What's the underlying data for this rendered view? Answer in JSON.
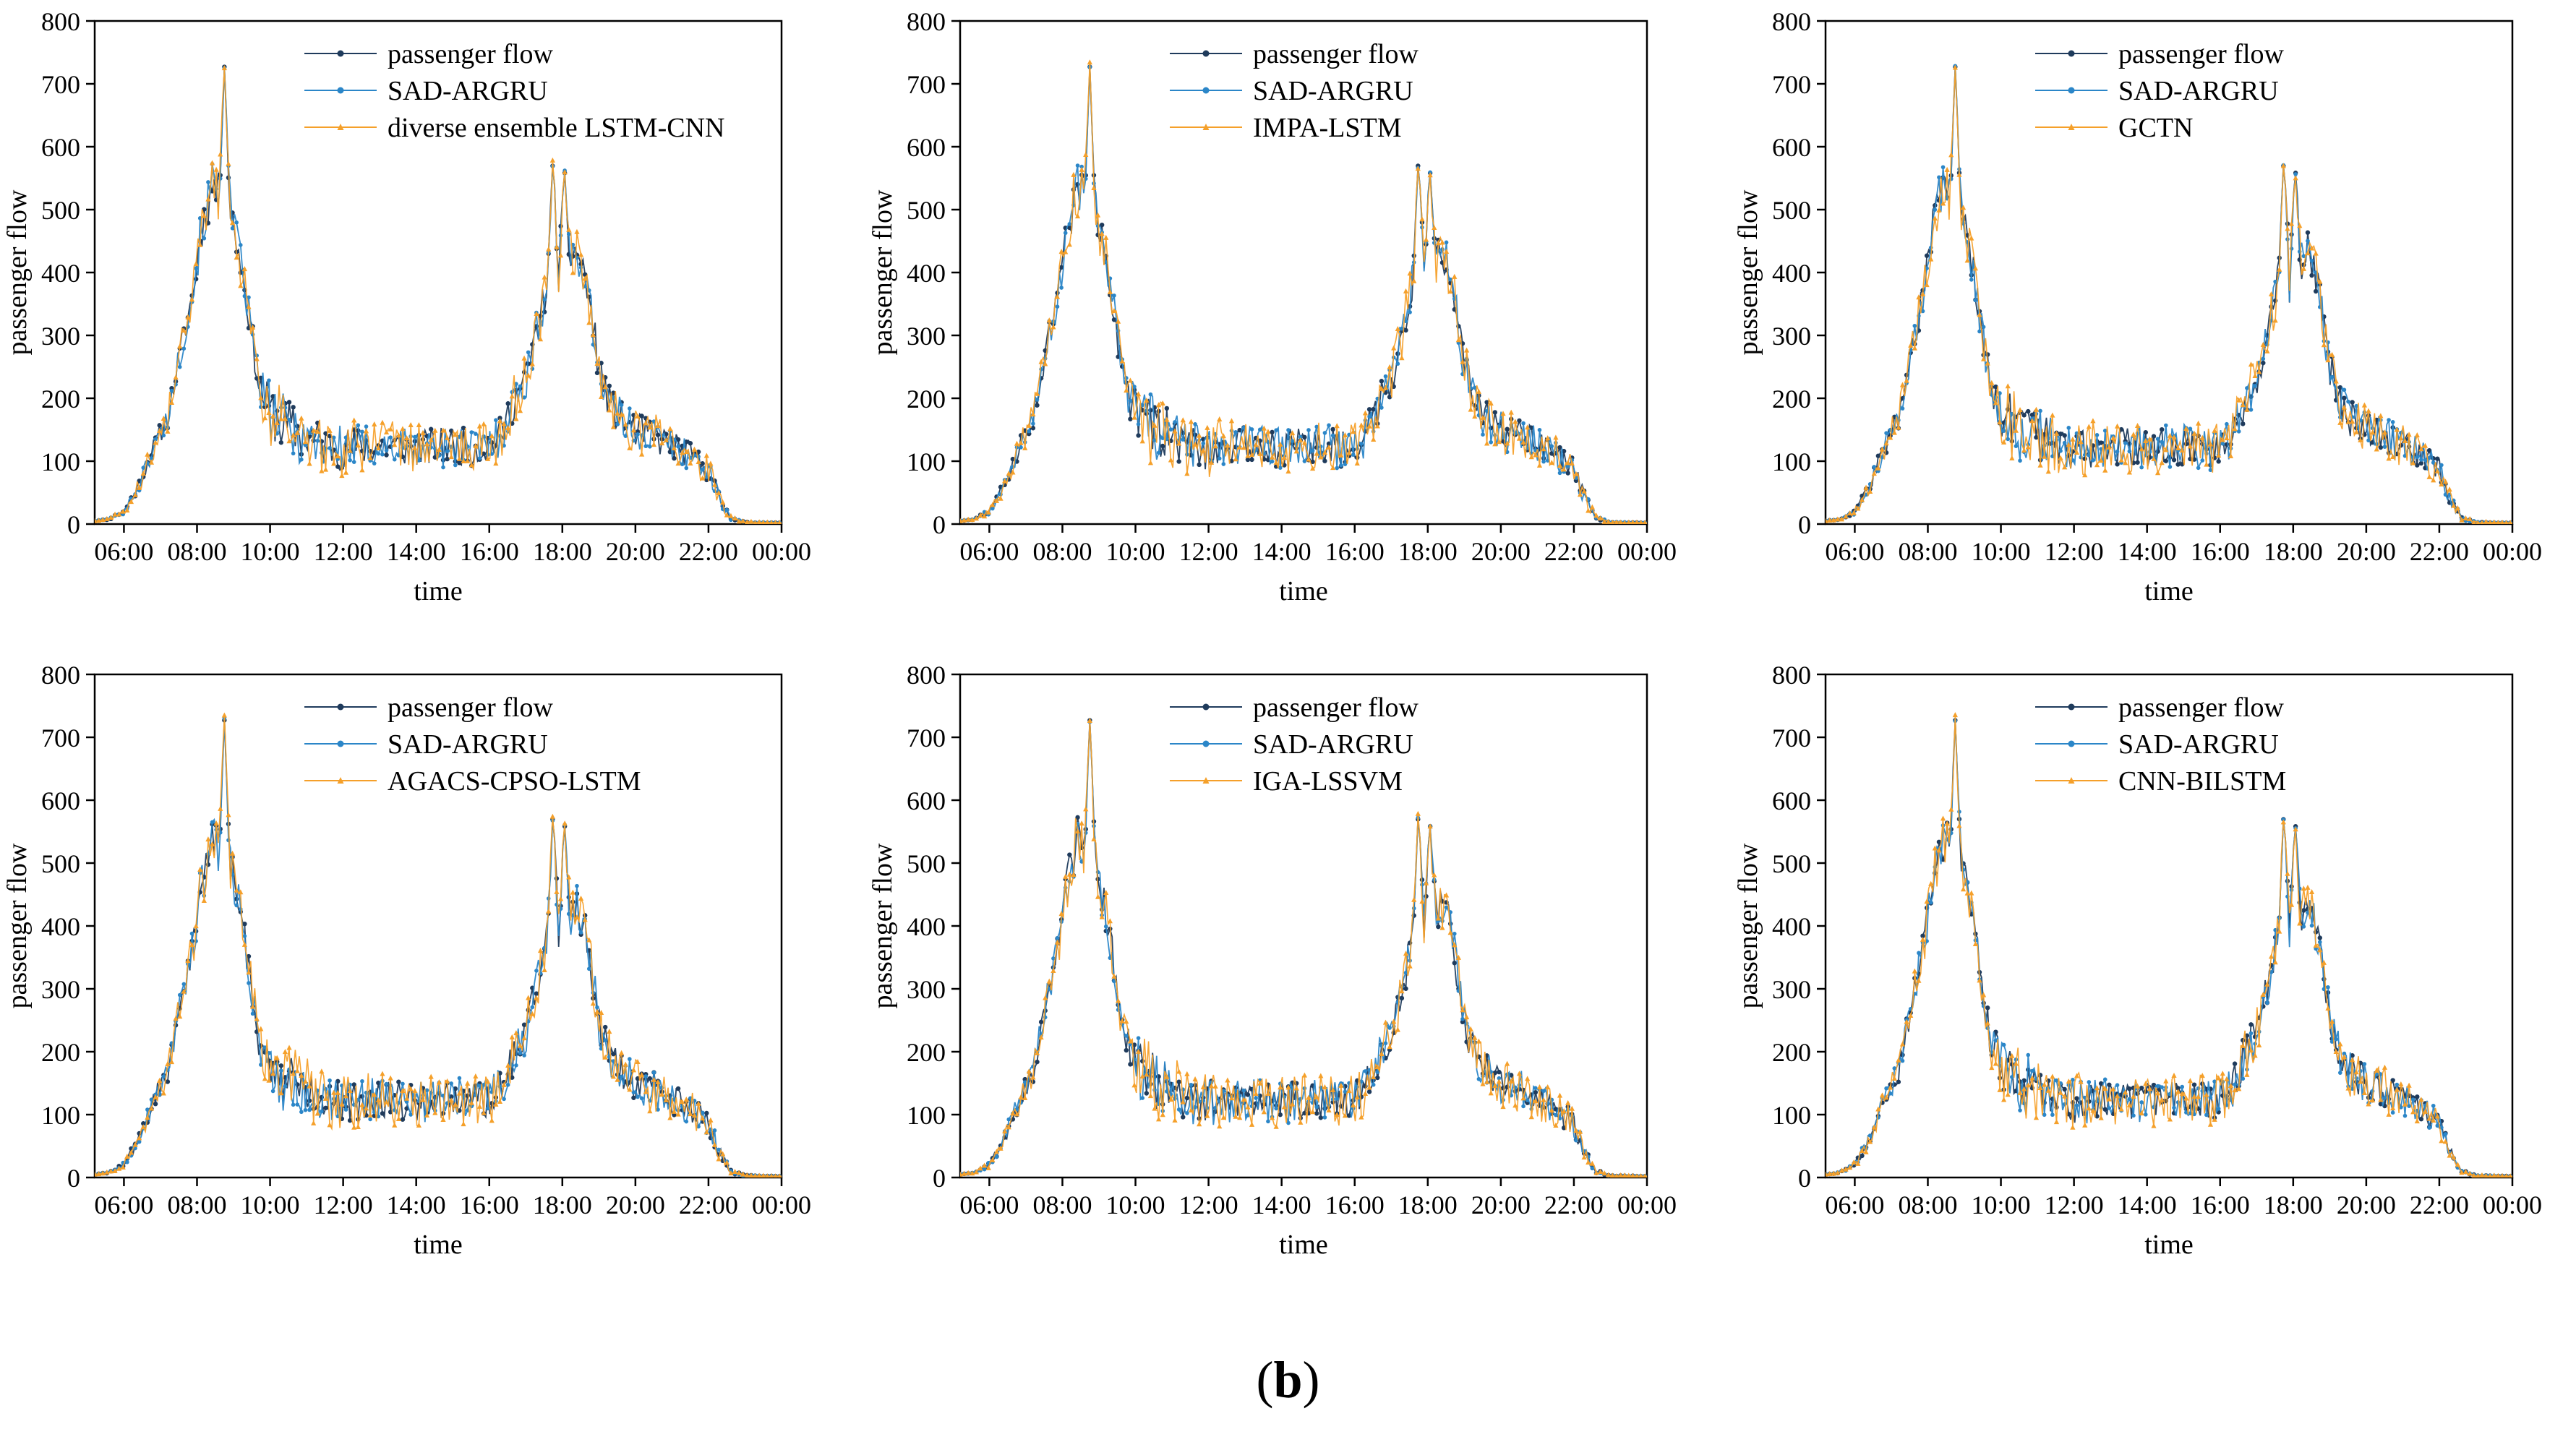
{
  "figure_label": {
    "open": "(",
    "letter": "b",
    "close": ")"
  },
  "colors": {
    "passenger_flow": "#1f3b5c",
    "sad_argru": "#2b86c8",
    "compare": "#f5a02a",
    "axis": "#000000",
    "background": "#ffffff"
  },
  "chart_data": [
    {
      "type": "line",
      "xlabel": "time",
      "ylabel": "passenger flow",
      "ylim": [
        0,
        800
      ],
      "yticks": [
        "0",
        "100",
        "200",
        "300",
        "400",
        "500",
        "600",
        "700",
        "800"
      ],
      "xticks": [
        "06:00",
        "08:00",
        "10:00",
        "12:00",
        "14:00",
        "16:00",
        "18:00",
        "20:00",
        "22:00",
        "00:00"
      ],
      "xlim_hours": [
        5.2,
        24.0
      ],
      "legend_position": "top-right",
      "series": [
        {
          "name": "passenger flow",
          "role": "actual"
        },
        {
          "name": "SAD-ARGRU",
          "role": "proposed"
        },
        {
          "name": "diverse ensemble LSTM-CNN",
          "role": "compare"
        }
      ]
    },
    {
      "type": "line",
      "xlabel": "time",
      "ylabel": "passenger flow",
      "ylim": [
        0,
        800
      ],
      "yticks": [
        "0",
        "100",
        "200",
        "300",
        "400",
        "500",
        "600",
        "700",
        "800"
      ],
      "xticks": [
        "06:00",
        "08:00",
        "10:00",
        "12:00",
        "14:00",
        "16:00",
        "18:00",
        "20:00",
        "22:00",
        "00:00"
      ],
      "xlim_hours": [
        5.2,
        24.0
      ],
      "legend_position": "top-right",
      "series": [
        {
          "name": "passenger flow",
          "role": "actual"
        },
        {
          "name": "SAD-ARGRU",
          "role": "proposed"
        },
        {
          "name": "IMPA-LSTM",
          "role": "compare"
        }
      ]
    },
    {
      "type": "line",
      "xlabel": "time",
      "ylabel": "passenger flow",
      "ylim": [
        0,
        800
      ],
      "yticks": [
        "0",
        "100",
        "200",
        "300",
        "400",
        "500",
        "600",
        "700",
        "800"
      ],
      "xticks": [
        "06:00",
        "08:00",
        "10:00",
        "12:00",
        "14:00",
        "16:00",
        "18:00",
        "20:00",
        "22:00",
        "00:00"
      ],
      "xlim_hours": [
        5.2,
        24.0
      ],
      "legend_position": "top-right",
      "series": [
        {
          "name": "passenger flow",
          "role": "actual"
        },
        {
          "name": "SAD-ARGRU",
          "role": "proposed"
        },
        {
          "name": "GCTN",
          "role": "compare"
        }
      ]
    },
    {
      "type": "line",
      "xlabel": "time",
      "ylabel": "passenger flow",
      "ylim": [
        0,
        800
      ],
      "yticks": [
        "0",
        "100",
        "200",
        "300",
        "400",
        "500",
        "600",
        "700",
        "800"
      ],
      "xticks": [
        "06:00",
        "08:00",
        "10:00",
        "12:00",
        "14:00",
        "16:00",
        "18:00",
        "20:00",
        "22:00",
        "00:00"
      ],
      "xlim_hours": [
        5.2,
        24.0
      ],
      "legend_position": "top-right",
      "series": [
        {
          "name": "passenger flow",
          "role": "actual"
        },
        {
          "name": "SAD-ARGRU",
          "role": "proposed"
        },
        {
          "name": "AGACS-CPSO-LSTM",
          "role": "compare"
        }
      ]
    },
    {
      "type": "line",
      "xlabel": "time",
      "ylabel": "passenger flow",
      "ylim": [
        0,
        800
      ],
      "yticks": [
        "0",
        "100",
        "200",
        "300",
        "400",
        "500",
        "600",
        "700",
        "800"
      ],
      "xticks": [
        "06:00",
        "08:00",
        "10:00",
        "12:00",
        "14:00",
        "16:00",
        "18:00",
        "20:00",
        "22:00",
        "00:00"
      ],
      "xlim_hours": [
        5.2,
        24.0
      ],
      "legend_position": "top-right",
      "series": [
        {
          "name": "passenger flow",
          "role": "actual"
        },
        {
          "name": "SAD-ARGRU",
          "role": "proposed"
        },
        {
          "name": "IGA-LSSVM",
          "role": "compare"
        }
      ]
    },
    {
      "type": "line",
      "xlabel": "time",
      "ylabel": "passenger flow",
      "ylim": [
        0,
        800
      ],
      "yticks": [
        "0",
        "100",
        "200",
        "300",
        "400",
        "500",
        "600",
        "700",
        "800"
      ],
      "xticks": [
        "06:00",
        "08:00",
        "10:00",
        "12:00",
        "14:00",
        "16:00",
        "18:00",
        "20:00",
        "22:00",
        "00:00"
      ],
      "xlim_hours": [
        5.2,
        24.0
      ],
      "legend_position": "top-right",
      "series": [
        {
          "name": "passenger flow",
          "role": "actual"
        },
        {
          "name": "SAD-ARGRU",
          "role": "proposed"
        },
        {
          "name": "CNN-BILSTM",
          "role": "compare"
        }
      ]
    }
  ],
  "actual_profile": {
    "x_hours": [
      5.2,
      5.6,
      6.0,
      6.4,
      6.8,
      7.2,
      7.6,
      7.9,
      8.1,
      8.3,
      8.45,
      8.6,
      8.75,
      8.9,
      9.05,
      9.25,
      9.5,
      9.7,
      10.0,
      10.3,
      10.6,
      11.0,
      11.5,
      12.0,
      13.0,
      14.0,
      15.0,
      15.8,
      16.3,
      16.7,
      17.0,
      17.2,
      17.4,
      17.6,
      17.75,
      17.9,
      18.05,
      18.2,
      18.4,
      18.6,
      18.8,
      19.0,
      19.3,
      19.6,
      20.0,
      20.5,
      21.0,
      21.5,
      22.0,
      22.3,
      22.6,
      23.0,
      24.0
    ],
    "values": [
      5,
      8,
      20,
      60,
      120,
      170,
      290,
      370,
      460,
      510,
      545,
      520,
      728,
      500,
      460,
      400,
      300,
      220,
      180,
      160,
      150,
      140,
      125,
      120,
      125,
      120,
      125,
      120,
      140,
      200,
      230,
      280,
      330,
      390,
      592,
      380,
      575,
      420,
      435,
      400,
      330,
      250,
      190,
      165,
      150,
      140,
      125,
      110,
      85,
      40,
      10,
      3,
      2
    ],
    "noise_amplitude": [
      0,
      1,
      4,
      10,
      15,
      18,
      22,
      25,
      30,
      35,
      40,
      35,
      0,
      30,
      30,
      28,
      25,
      30,
      40,
      45,
      45,
      40,
      35,
      35,
      30,
      30,
      30,
      30,
      30,
      30,
      30,
      30,
      30,
      30,
      0,
      35,
      0,
      35,
      30,
      30,
      30,
      30,
      30,
      30,
      28,
      28,
      25,
      22,
      18,
      10,
      3,
      1,
      0
    ]
  }
}
